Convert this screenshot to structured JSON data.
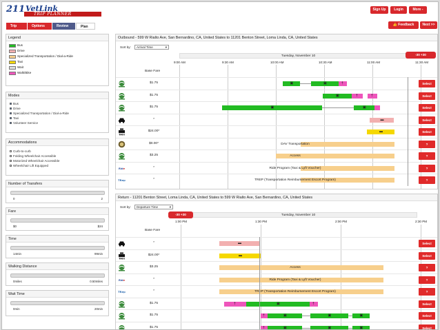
{
  "header": {
    "logo_num": "211",
    "logo_name": "VetLink",
    "logo_sub": "TRIP PLANNER",
    "signup": "Sign Up",
    "login": "Login",
    "more": "More -",
    "feedback": "👍 Feedback",
    "next": "Next >>"
  },
  "steps": [
    "Trip",
    "Options",
    "Review",
    "Plan"
  ],
  "legend": {
    "title": "Legend",
    "items": [
      {
        "label": "Bus",
        "color": "#22bb22"
      },
      {
        "label": "Drive",
        "color": "#f2b0b0"
      },
      {
        "label": "Specialized Transportation / Dial-a-Ride",
        "color": "#f7cf8c"
      },
      {
        "label": "Taxi",
        "color": "#f5d800"
      },
      {
        "label": "Wait",
        "color": "#dddddd"
      },
      {
        "label": "Walk/Bike",
        "color": "#ee55bb"
      }
    ]
  },
  "modes": {
    "title": "Modes",
    "items": [
      "Bus",
      "Drive",
      "Specialized Transportation / Dial-a-Ride",
      "Taxi",
      "Volunteer Service"
    ]
  },
  "accommodations": {
    "title": "Accommodations",
    "items": [
      "Curb-to-curb",
      "Folding Wheelchair Accessible",
      "Motorized Wheelchair Accessible",
      "Wheelchair Lift Equipped"
    ]
  },
  "filters": [
    {
      "title": "Number of Transfers",
      "min": "0",
      "max": "2"
    },
    {
      "title": "Fare",
      "min": "$0",
      "max": "$24"
    },
    {
      "title": "Time",
      "min": "14min",
      "max": "99min"
    },
    {
      "title": "Walking Distance",
      "min": "0miles",
      "max": "0.50miles"
    },
    {
      "title": "Wait Time",
      "min": "0min",
      "max": "20min"
    }
  ],
  "outbound": {
    "title": "Outbound - 599 W Rialto Ave, San Bernardino, CA, United States to 11201 Benton Street, Loma Linda, CA, United States",
    "sort_label": "Sort by:",
    "sort_value": "Arrival Time",
    "date": "Tuesday, November 10",
    "fare_header": "Base Fare",
    "time_flag": "-30   +30",
    "ticks": [
      "9:00 AM",
      "9:30 AM",
      "10:00 AM",
      "10:30 AM",
      "11:00 AM",
      "11:30 AM"
    ],
    "rows": [
      {
        "icon": "omnitrans-icon",
        "fare": "$1.75",
        "action": "Select"
      },
      {
        "icon": "omnitrans-icon",
        "fare": "$1.75",
        "action": "Select"
      },
      {
        "icon": "omnitrans-icon",
        "fare": "$1.75",
        "action": "Select"
      },
      {
        "icon": "car-icon",
        "fare": "*",
        "action": "Select"
      },
      {
        "icon": "taxi-icon",
        "fare": "$24.00*",
        "action": "Select"
      },
      {
        "icon": "dav-icon",
        "fare": "$0.00*",
        "label": "DAV Transportation",
        "action": "?"
      },
      {
        "icon": "access-icon",
        "fare": "$3.25",
        "label": "Access",
        "action": "?"
      },
      {
        "icon": "ride-program-icon",
        "fare": "*",
        "label": "Ride Program (Taxi & Lyft Voucher)",
        "action": "?"
      },
      {
        "icon": "trep-icon",
        "fare": "*",
        "label": "TREP (Transportation Reimbursement Escort Program)",
        "action": "?"
      }
    ]
  },
  "return": {
    "title": "Return - 11201 Benton Street, Loma Linda, CA, United States to 599 W Rialto Ave, San Bernardino, CA, United States",
    "sort_label": "Sort by:",
    "sort_value": "Departure Time",
    "date": "Tuesday, November 10",
    "fare_header": "Base Fare",
    "time_flag": "-30   +30",
    "ticks": [
      "1:00 PM",
      "1:30 PM",
      "2:00 PM",
      "2:30 PM"
    ],
    "rows": [
      {
        "icon": "car-icon",
        "fare": "*",
        "action": "Select"
      },
      {
        "icon": "taxi-icon",
        "fare": "$24.00*",
        "action": "Select"
      },
      {
        "icon": "access-icon",
        "fare": "$3.25",
        "label": "Access",
        "action": "?"
      },
      {
        "icon": "ride-program-icon",
        "fare": "*",
        "label": "Ride Program (Taxi & Lyft Voucher)",
        "action": "?"
      },
      {
        "icon": "trep-icon",
        "fare": "*",
        "label": "TREP (Transportation Reimbursement Escort Program)",
        "action": "?"
      },
      {
        "icon": "omnitrans-icon",
        "fare": "$1.75",
        "action": "Select"
      },
      {
        "icon": "omnitrans-icon",
        "fare": "$1.75",
        "action": "Select"
      },
      {
        "icon": "omnitrans-icon",
        "fare": "$1.75",
        "action": "Select"
      }
    ]
  }
}
